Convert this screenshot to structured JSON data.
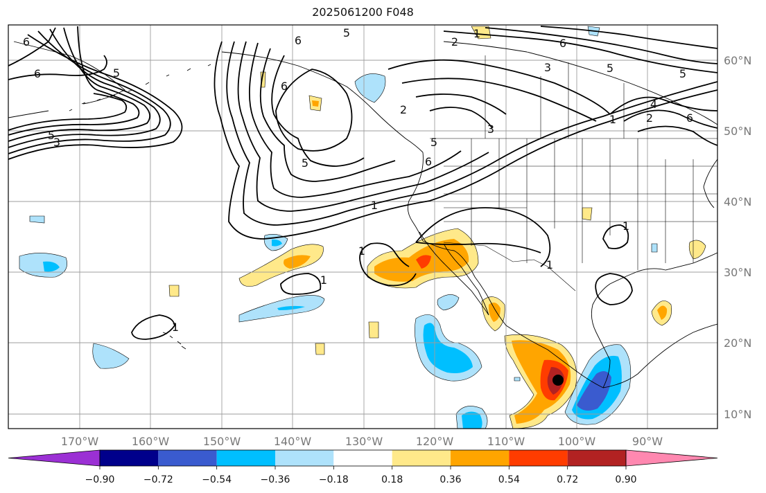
{
  "title": "2025061200 F048",
  "map": {
    "lon_labels": [
      "170°W",
      "160°W",
      "150°W",
      "140°W",
      "130°W",
      "120°W",
      "110°W",
      "100°W",
      "90°W"
    ],
    "lat_labels": [
      "60°N",
      "50°N",
      "40°N",
      "30°N",
      "20°N",
      "10°N"
    ],
    "contour_labels": [
      "6",
      "5",
      "2",
      "1",
      "6",
      "6",
      "5",
      "3",
      "5",
      "2",
      "6",
      "5",
      "3",
      "5",
      "6",
      "5",
      "6",
      "1",
      "1",
      "1",
      "1",
      "1",
      "2",
      "3",
      "4",
      "5",
      "6",
      "1",
      "1"
    ],
    "colors": {
      "grid": "#9e9e9e",
      "contour": "#000000",
      "coast": "#000000"
    }
  },
  "colorbar": {
    "tick_labels": [
      "−0.90",
      "−0.72",
      "−0.54",
      "−0.36",
      "−0.18",
      "0.18",
      "0.36",
      "0.54",
      "0.72",
      "0.90"
    ],
    "colors": [
      "#9b30d4",
      "#00008b",
      "#3a5bcf",
      "#00bfff",
      "#aee2fb",
      "#ffffff",
      "#ffe98a",
      "#ffa500",
      "#ff3c00",
      "#b22222",
      "#ff88b0"
    ]
  }
}
